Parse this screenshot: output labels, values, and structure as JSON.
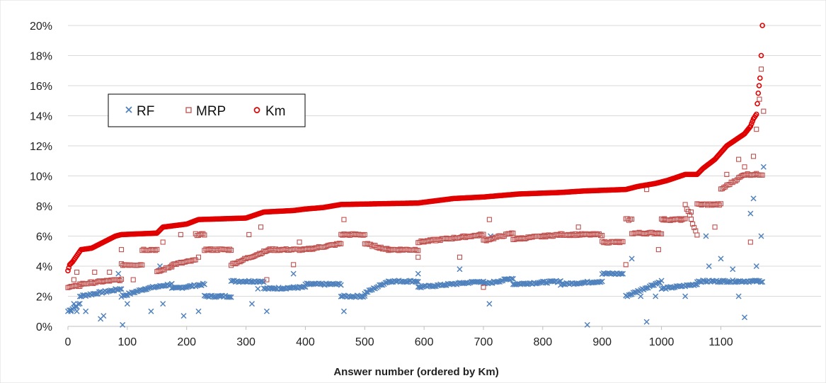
{
  "chart_data": {
    "type": "scatter",
    "title": "",
    "xlabel": "Answer number (ordered by Km)",
    "ylabel": "",
    "xlim": [
      0,
      1175
    ],
    "ylim": [
      0,
      0.2
    ],
    "x_ticks": [
      "0",
      "100",
      "200",
      "300",
      "400",
      "500",
      "600",
      "700",
      "800",
      "900",
      "1000",
      "1100"
    ],
    "y_ticks": [
      "0%",
      "2%",
      "4%",
      "6%",
      "8%",
      "10%",
      "12%",
      "14%",
      "16%",
      "18%",
      "20%"
    ],
    "grid": "horizontal",
    "legend": "top-left",
    "series": [
      {
        "name": "RF",
        "marker": "x",
        "color": "#4f81bd",
        "segments": [
          [
            0,
            0.01,
            20,
            0.015
          ],
          [
            20,
            0.02,
            90,
            0.025
          ],
          [
            90,
            0.02,
            130,
            0.025
          ],
          [
            130,
            0.025,
            175,
            0.028
          ],
          [
            175,
            0.025,
            230,
            0.028
          ],
          [
            230,
            0.02,
            275,
            0.02
          ],
          [
            275,
            0.03,
            330,
            0.03
          ],
          [
            330,
            0.025,
            400,
            0.026
          ],
          [
            400,
            0.028,
            460,
            0.028
          ],
          [
            460,
            0.02,
            500,
            0.02
          ],
          [
            500,
            0.022,
            540,
            0.03
          ],
          [
            540,
            0.03,
            590,
            0.03
          ],
          [
            590,
            0.026,
            700,
            0.03
          ],
          [
            700,
            0.028,
            750,
            0.032
          ],
          [
            750,
            0.028,
            830,
            0.03
          ],
          [
            830,
            0.028,
            900,
            0.03
          ],
          [
            900,
            0.035,
            935,
            0.035
          ],
          [
            940,
            0.02,
            1000,
            0.03
          ],
          [
            1000,
            0.025,
            1060,
            0.028
          ],
          [
            1060,
            0.03,
            1160,
            0.03
          ],
          [
            1160,
            0.03,
            1170,
            0.03
          ]
        ],
        "outliers": [
          [
            5,
            0.01
          ],
          [
            10,
            0.015
          ],
          [
            15,
            0.01
          ],
          [
            30,
            0.01
          ],
          [
            55,
            0.005
          ],
          [
            60,
            0.007
          ],
          [
            85,
            0.035
          ],
          [
            92,
            0.001
          ],
          [
            100,
            0.015
          ],
          [
            140,
            0.01
          ],
          [
            155,
            0.04
          ],
          [
            160,
            0.015
          ],
          [
            195,
            0.007
          ],
          [
            220,
            0.01
          ],
          [
            310,
            0.015
          ],
          [
            320,
            0.025
          ],
          [
            335,
            0.01
          ],
          [
            380,
            0.035
          ],
          [
            465,
            0.01
          ],
          [
            590,
            0.035
          ],
          [
            660,
            0.038
          ],
          [
            710,
            0.015
          ],
          [
            712,
            0.06
          ],
          [
            875,
            0.001
          ],
          [
            950,
            0.045
          ],
          [
            965,
            0.02
          ],
          [
            975,
            0.003
          ],
          [
            990,
            0.02
          ],
          [
            1040,
            0.02
          ],
          [
            1075,
            0.06
          ],
          [
            1080,
            0.04
          ],
          [
            1100,
            0.045
          ],
          [
            1120,
            0.038
          ],
          [
            1130,
            0.02
          ],
          [
            1140,
            0.006
          ],
          [
            1150,
            0.075
          ],
          [
            1155,
            0.085
          ],
          [
            1160,
            0.04
          ],
          [
            1168,
            0.06
          ],
          [
            1172,
            0.106
          ]
        ]
      },
      {
        "name": "MRP",
        "marker": "square",
        "color": "#c0504d",
        "segments": [
          [
            0,
            0.026,
            20,
            0.027
          ],
          [
            20,
            0.028,
            60,
            0.03
          ],
          [
            60,
            0.03,
            90,
            0.031
          ],
          [
            90,
            0.041,
            125,
            0.041
          ],
          [
            125,
            0.051,
            150,
            0.051
          ],
          [
            150,
            0.036,
            175,
            0.04
          ],
          [
            175,
            0.041,
            215,
            0.044
          ],
          [
            215,
            0.061,
            230,
            0.061
          ],
          [
            230,
            0.051,
            275,
            0.051
          ],
          [
            275,
            0.041,
            300,
            0.045
          ],
          [
            300,
            0.045,
            340,
            0.051
          ],
          [
            340,
            0.051,
            400,
            0.051
          ],
          [
            400,
            0.051,
            460,
            0.055
          ],
          [
            460,
            0.061,
            500,
            0.061
          ],
          [
            500,
            0.055,
            540,
            0.051
          ],
          [
            540,
            0.051,
            590,
            0.051
          ],
          [
            590,
            0.056,
            700,
            0.061
          ],
          [
            700,
            0.057,
            750,
            0.062
          ],
          [
            750,
            0.058,
            830,
            0.061
          ],
          [
            830,
            0.061,
            900,
            0.061
          ],
          [
            900,
            0.056,
            935,
            0.056
          ],
          [
            940,
            0.071,
            950,
            0.071
          ],
          [
            950,
            0.062,
            1000,
            0.062
          ],
          [
            1000,
            0.071,
            1040,
            0.071
          ],
          [
            1040,
            0.081,
            1060,
            0.061
          ],
          [
            1060,
            0.081,
            1100,
            0.081
          ],
          [
            1100,
            0.091,
            1140,
            0.101
          ],
          [
            1140,
            0.101,
            1170,
            0.101
          ]
        ],
        "outliers": [
          [
            10,
            0.031
          ],
          [
            15,
            0.036
          ],
          [
            45,
            0.036
          ],
          [
            70,
            0.036
          ],
          [
            90,
            0.051
          ],
          [
            110,
            0.031
          ],
          [
            160,
            0.056
          ],
          [
            190,
            0.061
          ],
          [
            220,
            0.046
          ],
          [
            305,
            0.061
          ],
          [
            325,
            0.066
          ],
          [
            335,
            0.031
          ],
          [
            380,
            0.041
          ],
          [
            390,
            0.056
          ],
          [
            465,
            0.071
          ],
          [
            590,
            0.046
          ],
          [
            660,
            0.046
          ],
          [
            700,
            0.026
          ],
          [
            710,
            0.071
          ],
          [
            860,
            0.066
          ],
          [
            940,
            0.041
          ],
          [
            975,
            0.091
          ],
          [
            995,
            0.051
          ],
          [
            1005,
            0.071
          ],
          [
            1050,
            0.076
          ],
          [
            1090,
            0.066
          ],
          [
            1110,
            0.101
          ],
          [
            1130,
            0.111
          ],
          [
            1140,
            0.106
          ],
          [
            1150,
            0.056
          ],
          [
            1155,
            0.113
          ],
          [
            1160,
            0.131
          ],
          [
            1165,
            0.151
          ],
          [
            1168,
            0.171
          ],
          [
            1172,
            0.143
          ]
        ]
      },
      {
        "name": "Km",
        "marker": "circle",
        "color": "#e00000",
        "points": [
          [
            0,
            0.037
          ],
          [
            3,
            0.041
          ],
          [
            8,
            0.043
          ],
          [
            15,
            0.047
          ],
          [
            22,
            0.051
          ],
          [
            40,
            0.052
          ],
          [
            60,
            0.056
          ],
          [
            80,
            0.06
          ],
          [
            90,
            0.061
          ],
          [
            150,
            0.062
          ],
          [
            160,
            0.066
          ],
          [
            200,
            0.068
          ],
          [
            220,
            0.071
          ],
          [
            300,
            0.072
          ],
          [
            330,
            0.076
          ],
          [
            380,
            0.077
          ],
          [
            400,
            0.078
          ],
          [
            430,
            0.079
          ],
          [
            460,
            0.081
          ],
          [
            590,
            0.082
          ],
          [
            650,
            0.085
          ],
          [
            700,
            0.086
          ],
          [
            760,
            0.088
          ],
          [
            830,
            0.089
          ],
          [
            870,
            0.09
          ],
          [
            940,
            0.091
          ],
          [
            960,
            0.093
          ],
          [
            990,
            0.095
          ],
          [
            1010,
            0.097
          ],
          [
            1040,
            0.101
          ],
          [
            1060,
            0.101
          ],
          [
            1070,
            0.105
          ],
          [
            1090,
            0.111
          ],
          [
            1110,
            0.12
          ],
          [
            1125,
            0.124
          ],
          [
            1140,
            0.128
          ],
          [
            1150,
            0.133
          ],
          [
            1155,
            0.138
          ],
          [
            1160,
            0.141
          ],
          [
            1163,
            0.155
          ],
          [
            1166,
            0.165
          ],
          [
            1168,
            0.18
          ],
          [
            1170,
            0.2
          ]
        ]
      }
    ]
  }
}
